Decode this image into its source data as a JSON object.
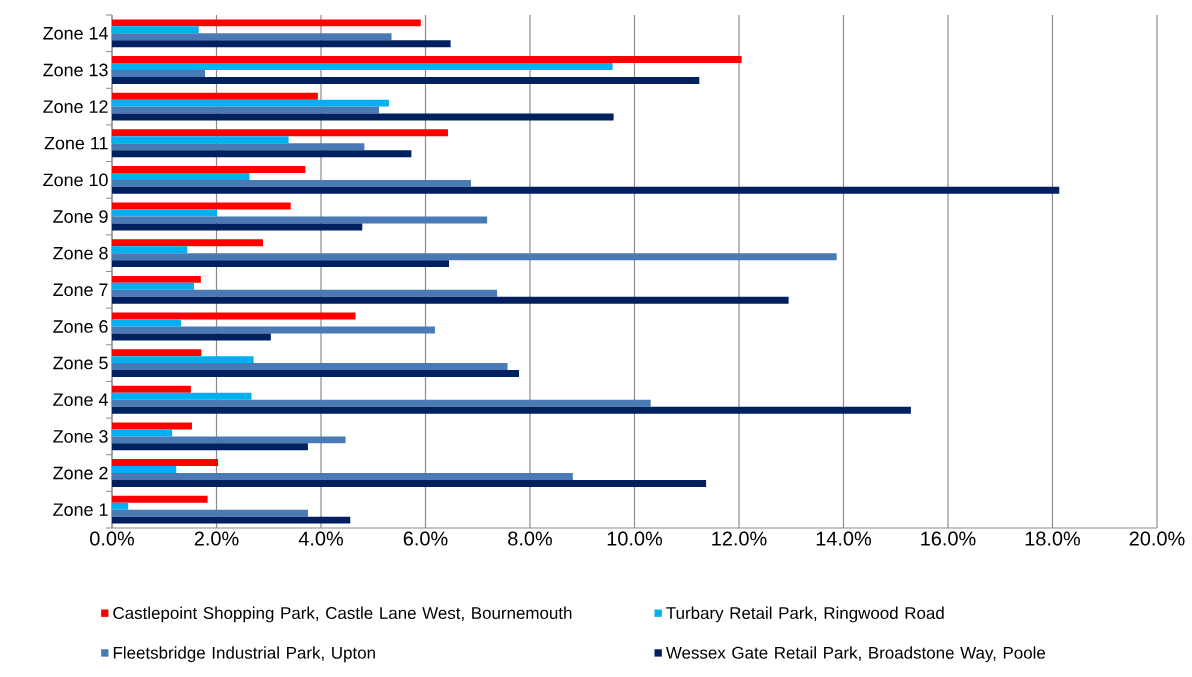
{
  "chart_data": {
    "type": "bar",
    "orientation": "horizontal",
    "categories": [
      "Zone 14",
      "Zone 13",
      "Zone 12",
      "Zone 11",
      "Zone 10",
      "Zone 9",
      "Zone 8",
      "Zone 7",
      "Zone 6",
      "Zone 5",
      "Zone 4",
      "Zone 3",
      "Zone 2",
      "Zone 1"
    ],
    "series": [
      {
        "name": "Castlepoint Shopping Park, Castle Lane West, Bournemouth",
        "color": "#ff0000",
        "values": [
          5.91,
          12.05,
          3.94,
          6.43,
          3.7,
          3.42,
          2.89,
          1.7,
          4.66,
          1.71,
          1.51,
          1.53,
          2.03,
          1.83
        ]
      },
      {
        "name": "Turbary Retail Park, Ringwood Road",
        "color": "#00b0f0",
        "values": [
          1.66,
          9.58,
          5.3,
          3.38,
          2.63,
          2.01,
          1.44,
          1.57,
          1.32,
          2.71,
          2.67,
          1.15,
          1.23,
          0.31
        ]
      },
      {
        "name": "Fleetsbridge Industrial Park, Upton",
        "color": "#4a7ab5",
        "values": [
          5.35,
          1.78,
          5.11,
          4.83,
          6.87,
          7.18,
          13.87,
          7.37,
          6.18,
          7.57,
          10.31,
          4.47,
          8.82,
          3.75
        ]
      },
      {
        "name": "Wessex Gate Retail Park, Broadstone Way, Poole",
        "color": "#002060",
        "values": [
          6.48,
          11.24,
          9.6,
          5.73,
          18.13,
          4.79,
          6.45,
          12.95,
          3.04,
          7.79,
          15.29,
          3.75,
          11.37,
          4.56
        ]
      }
    ],
    "xlim": [
      0,
      20
    ],
    "xticks": [
      {
        "value": 0,
        "label": "0.0%"
      },
      {
        "value": 2,
        "label": "2.0%"
      },
      {
        "value": 4,
        "label": "4.0%"
      },
      {
        "value": 6,
        "label": "6.0%"
      },
      {
        "value": 8,
        "label": "8.0%"
      },
      {
        "value": 10,
        "label": "10.0%"
      },
      {
        "value": 12,
        "label": "12.0%"
      },
      {
        "value": 14,
        "label": "14.0%"
      },
      {
        "value": 16,
        "label": "16.0%"
      },
      {
        "value": 18,
        "label": "18.0%"
      },
      {
        "value": 20,
        "label": "20.0%"
      }
    ],
    "grid": "x",
    "legend": "bottom"
  }
}
